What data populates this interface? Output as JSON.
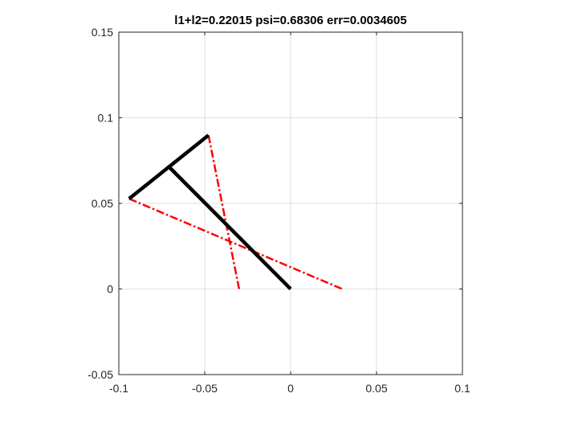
{
  "chart_data": {
    "type": "line",
    "title": "l1+l2=0.22015 psi=0.68306 err=0.0034605",
    "xlabel": "",
    "ylabel": "",
    "xlim": [
      -0.1,
      0.1
    ],
    "ylim": [
      -0.05,
      0.15
    ],
    "x_ticks": [
      -0.1,
      -0.05,
      0,
      0.05,
      0.1
    ],
    "x_tick_labels": [
      "-0.1",
      "-0.05",
      "0",
      "0.05",
      "0.1"
    ],
    "y_ticks": [
      -0.05,
      0,
      0.05,
      0.1,
      0.15
    ],
    "y_tick_labels": [
      "-0.05",
      "0",
      "0.05",
      "0.1",
      "0.15"
    ],
    "grid": true,
    "series": [
      {
        "style": "solid",
        "color": "#000000",
        "segments": [
          [
            [
              0.0,
              0.0
            ],
            [
              -0.0705,
              0.071
            ]
          ],
          [
            [
              -0.094,
              0.0527
            ],
            [
              -0.0478,
              0.0898
            ]
          ]
        ]
      },
      {
        "style": "dash-dot",
        "color": "#ff0000",
        "segments": [
          [
            [
              -0.094,
              0.0527
            ],
            [
              0.03,
              0.0
            ]
          ],
          [
            [
              -0.0478,
              0.0898
            ],
            [
              -0.03,
              0.0
            ]
          ]
        ]
      }
    ]
  }
}
